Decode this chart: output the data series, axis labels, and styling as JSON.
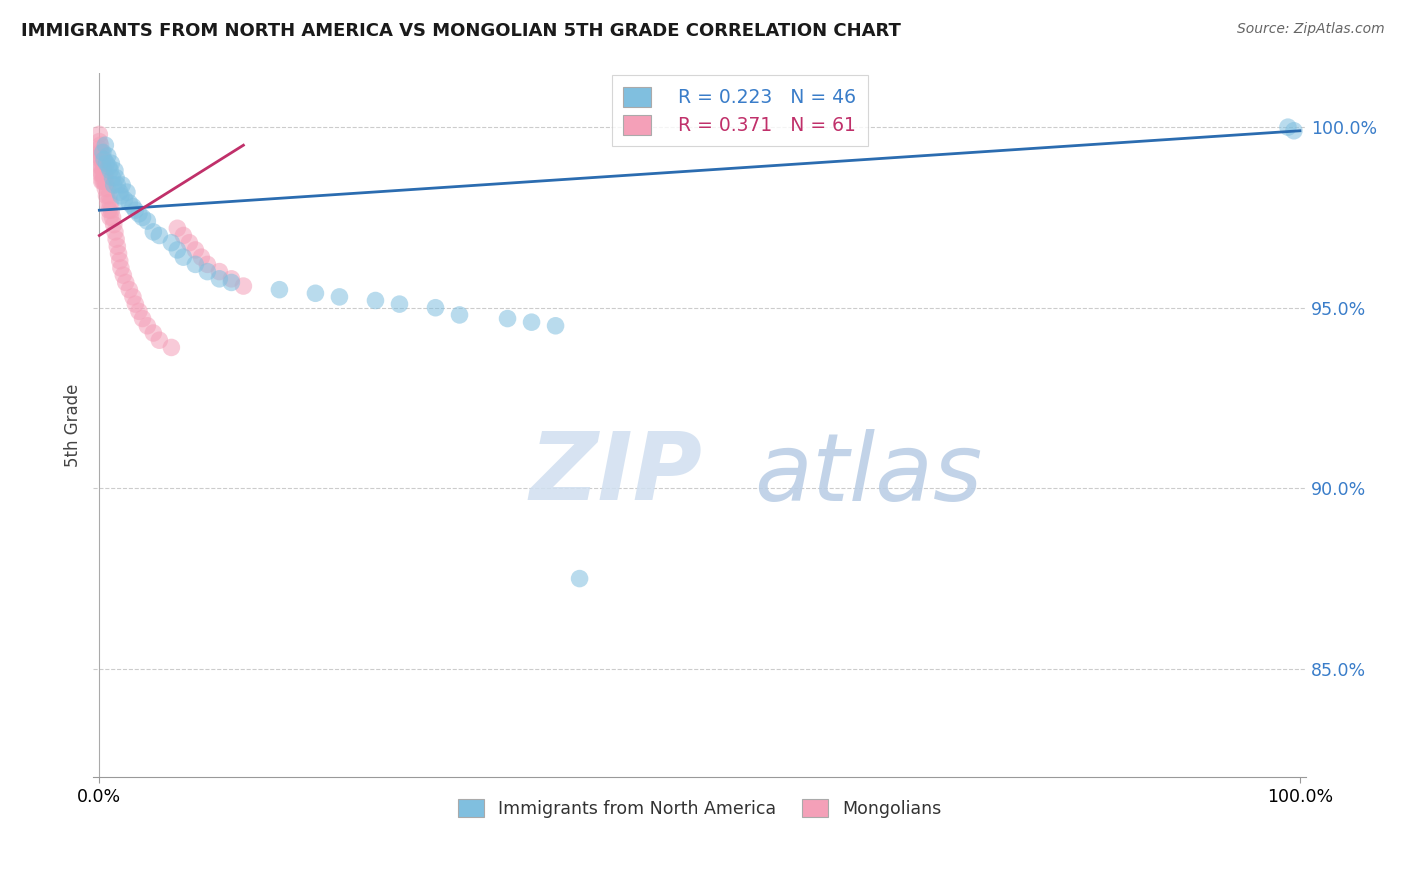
{
  "title": "IMMIGRANTS FROM NORTH AMERICA VS MONGOLIAN 5TH GRADE CORRELATION CHART",
  "source": "Source: ZipAtlas.com",
  "ylabel": "5th Grade",
  "blue_R": 0.223,
  "blue_N": 46,
  "pink_R": 0.371,
  "pink_N": 61,
  "blue_color": "#80bfdf",
  "pink_color": "#f4a0b8",
  "line_color": "#2b6cb0",
  "pink_line_color": "#c0306a",
  "watermark_zip": "ZIP",
  "watermark_atlas": "atlas",
  "xlim": [
    0.0,
    1.0
  ],
  "ylim": [
    0.82,
    1.015
  ],
  "ytick_vals": [
    1.0,
    0.95,
    0.9,
    0.85
  ],
  "ytick_labels": [
    "100.0%",
    "95.0%",
    "90.0%",
    "85.0%"
  ],
  "xtick_vals": [
    0.0,
    1.0
  ],
  "xtick_labels": [
    "0.0%",
    "100.0%"
  ],
  "blue_line_x": [
    0.0,
    1.0
  ],
  "blue_line_y": [
    0.977,
    0.999
  ],
  "pink_line_x": [
    0.0,
    0.12
  ],
  "pink_line_y": [
    0.97,
    0.995
  ],
  "blue_points_x": [
    0.003,
    0.004,
    0.005,
    0.006,
    0.007,
    0.008,
    0.009,
    0.01,
    0.011,
    0.012,
    0.013,
    0.014,
    0.015,
    0.017,
    0.018,
    0.019,
    0.021,
    0.023,
    0.025,
    0.028,
    0.03,
    0.033,
    0.036,
    0.04,
    0.045,
    0.05,
    0.06,
    0.065,
    0.07,
    0.08,
    0.09,
    0.1,
    0.11,
    0.15,
    0.18,
    0.2,
    0.23,
    0.25,
    0.28,
    0.3,
    0.34,
    0.36,
    0.38,
    0.4,
    0.99,
    0.995
  ],
  "blue_points_y": [
    0.993,
    0.991,
    0.995,
    0.99,
    0.992,
    0.989,
    0.988,
    0.99,
    0.986,
    0.984,
    0.988,
    0.986,
    0.984,
    0.982,
    0.981,
    0.984,
    0.98,
    0.982,
    0.979,
    0.978,
    0.977,
    0.976,
    0.975,
    0.974,
    0.971,
    0.97,
    0.968,
    0.966,
    0.964,
    0.962,
    0.96,
    0.958,
    0.957,
    0.955,
    0.954,
    0.953,
    0.952,
    0.951,
    0.95,
    0.948,
    0.947,
    0.946,
    0.945,
    0.875,
    1.0,
    0.999
  ],
  "pink_points_x": [
    0.0,
    0.0,
    0.0,
    0.0,
    0.001,
    0.001,
    0.001,
    0.001,
    0.001,
    0.002,
    0.002,
    0.002,
    0.002,
    0.002,
    0.003,
    0.003,
    0.003,
    0.003,
    0.004,
    0.004,
    0.004,
    0.005,
    0.005,
    0.005,
    0.006,
    0.006,
    0.007,
    0.007,
    0.008,
    0.008,
    0.009,
    0.009,
    0.01,
    0.011,
    0.012,
    0.013,
    0.014,
    0.015,
    0.016,
    0.017,
    0.018,
    0.02,
    0.022,
    0.025,
    0.028,
    0.03,
    0.033,
    0.036,
    0.04,
    0.045,
    0.05,
    0.06,
    0.065,
    0.07,
    0.075,
    0.08,
    0.085,
    0.09,
    0.1,
    0.11,
    0.12
  ],
  "pink_points_y": [
    0.998,
    0.996,
    0.994,
    0.992,
    0.995,
    0.993,
    0.991,
    0.989,
    0.987,
    0.993,
    0.991,
    0.989,
    0.987,
    0.985,
    0.991,
    0.989,
    0.987,
    0.985,
    0.989,
    0.987,
    0.985,
    0.987,
    0.985,
    0.983,
    0.985,
    0.981,
    0.983,
    0.979,
    0.981,
    0.977,
    0.979,
    0.975,
    0.977,
    0.975,
    0.973,
    0.971,
    0.969,
    0.967,
    0.965,
    0.963,
    0.961,
    0.959,
    0.957,
    0.955,
    0.953,
    0.951,
    0.949,
    0.947,
    0.945,
    0.943,
    0.941,
    0.939,
    0.972,
    0.97,
    0.968,
    0.966,
    0.964,
    0.962,
    0.96,
    0.958,
    0.956
  ]
}
